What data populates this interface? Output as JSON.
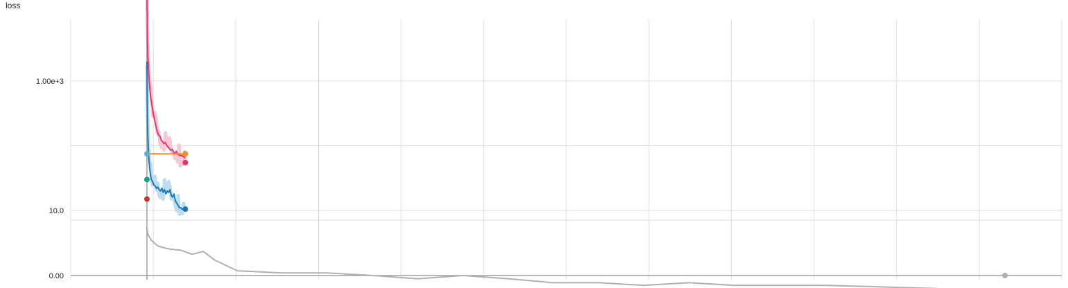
{
  "chart_data": {
    "type": "line",
    "title": "loss",
    "xlabel": "",
    "ylabel": "",
    "y_scale": "log",
    "y_ticks": [
      {
        "label": "1.00e+3",
        "value": 1000
      },
      {
        "label": "10.0",
        "value": 10
      },
      {
        "label": "0.00",
        "value": 0
      }
    ],
    "x_tick_count": 13,
    "grid": true,
    "legend": "none",
    "colors": {
      "pink": "#e8336d",
      "pink_raw": "#f8c6d7",
      "blue": "#1f77b4",
      "blue_raw": "#bcdcf0",
      "orange": "#f28b30",
      "cyan": "#56b4d3",
      "teal": "#1f9e89",
      "red": "#c0392b",
      "gray": "#b0b0b0",
      "grid": "#dddddd",
      "axis": "#9e9e9e"
    },
    "series": [
      {
        "color_key": "pink",
        "x": [
          0,
          1,
          2,
          4,
          7,
          10,
          13,
          17,
          22,
          28,
          34,
          40,
          46,
          52,
          58,
          64,
          70,
          76,
          82,
          88,
          94,
          100,
          106,
          112,
          118,
          124,
          130,
          136,
          142,
          148,
          154,
          160,
          166,
          170
        ],
        "y": [
          40000,
          12000,
          5000,
          2500,
          1500,
          1000,
          750,
          560,
          420,
          320,
          250,
          200,
          165,
          145,
          140,
          120,
          115,
          108,
          112,
          100,
          95,
          90,
          85,
          88,
          80,
          76,
          82,
          74,
          72,
          70,
          71,
          68,
          66,
          65
        ]
      },
      {
        "color_key": "blue",
        "x": [
          0,
          1,
          2,
          4,
          6,
          9,
          12,
          16,
          20,
          25,
          30,
          36,
          42,
          48,
          54,
          60,
          66,
          72,
          78,
          84,
          90,
          96,
          102,
          108,
          114,
          120,
          126,
          132,
          138,
          144,
          150,
          156,
          162,
          170
        ],
        "y": [
          2000,
          900,
          300,
          150,
          90,
          60,
          45,
          35,
          30,
          28,
          25,
          24,
          22,
          23,
          21,
          20,
          22,
          19,
          21,
          18,
          20,
          19,
          21,
          17,
          16,
          18,
          14,
          13,
          12,
          11,
          11,
          10.5,
          10.5,
          10.5
        ]
      },
      {
        "color_key": "orange",
        "x": [
          0,
          170
        ],
        "y": [
          75,
          75
        ]
      },
      {
        "color_key": "gray",
        "x": [
          0,
          5,
          20,
          50,
          100,
          150,
          200,
          250,
          300,
          400,
          600,
          800,
          1000,
          1200,
          1400,
          1600,
          1800,
          2000,
          2200,
          2400,
          2600,
          3000,
          3500,
          3800
        ],
        "y": [
          3,
          1.8,
          1.2,
          0.8,
          0.65,
          0.6,
          0.45,
          0.55,
          0.3,
          0.14,
          0.12,
          0.12,
          0.1,
          0.08,
          0.1,
          0.08,
          0.06,
          0.06,
          0.05,
          0.06,
          0.05,
          0.05,
          0.04,
          0.02
        ]
      }
    ],
    "markers": [
      {
        "color_key": "cyan",
        "x": 0,
        "y": 75
      },
      {
        "color_key": "teal",
        "x": 0,
        "y": 30
      },
      {
        "color_key": "red",
        "x": 0,
        "y": 15
      },
      {
        "color_key": "orange",
        "x": 170,
        "y": 75
      },
      {
        "color_key": "pink",
        "x": 170,
        "y": 55
      },
      {
        "color_key": "blue",
        "x": 170,
        "y": 10.5
      },
      {
        "color_key": "gray",
        "x": 3800,
        "y": 0
      }
    ]
  }
}
